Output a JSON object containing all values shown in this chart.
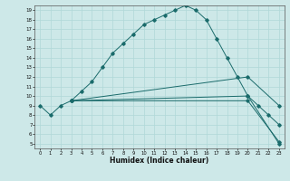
{
  "xlabel": "Humidex (Indice chaleur)",
  "ylabel": "",
  "xlim": [
    -0.5,
    23.5
  ],
  "ylim": [
    4.5,
    19.5
  ],
  "xticks": [
    0,
    1,
    2,
    3,
    4,
    5,
    6,
    7,
    8,
    9,
    10,
    11,
    12,
    13,
    14,
    15,
    16,
    17,
    18,
    19,
    20,
    21,
    22,
    23
  ],
  "yticks": [
    5,
    6,
    7,
    8,
    9,
    10,
    11,
    12,
    13,
    14,
    15,
    16,
    17,
    18,
    19
  ],
  "bg_color": "#cde8e8",
  "grid_color": "#b0d8d8",
  "line_color": "#1a6b6b",
  "line1": {
    "x": [
      0,
      1,
      2,
      3,
      4,
      5,
      6,
      7,
      8,
      9,
      10,
      11,
      12,
      13,
      14,
      15,
      16,
      17,
      18,
      19,
      20,
      21,
      22,
      23
    ],
    "y": [
      9,
      8,
      9,
      9.5,
      10.5,
      11.5,
      13,
      14.5,
      15.5,
      16.5,
      17.5,
      18,
      18.5,
      19,
      19.5,
      19,
      18,
      16,
      14,
      12,
      10,
      9,
      8,
      7
    ]
  },
  "line2": {
    "x": [
      3,
      20,
      23
    ],
    "y": [
      9.5,
      10,
      5
    ]
  },
  "line3": {
    "x": [
      3,
      20,
      23
    ],
    "y": [
      9.5,
      12,
      9
    ]
  },
  "line4": {
    "x": [
      3,
      20,
      23
    ],
    "y": [
      9.5,
      9.5,
      5.2
    ]
  }
}
